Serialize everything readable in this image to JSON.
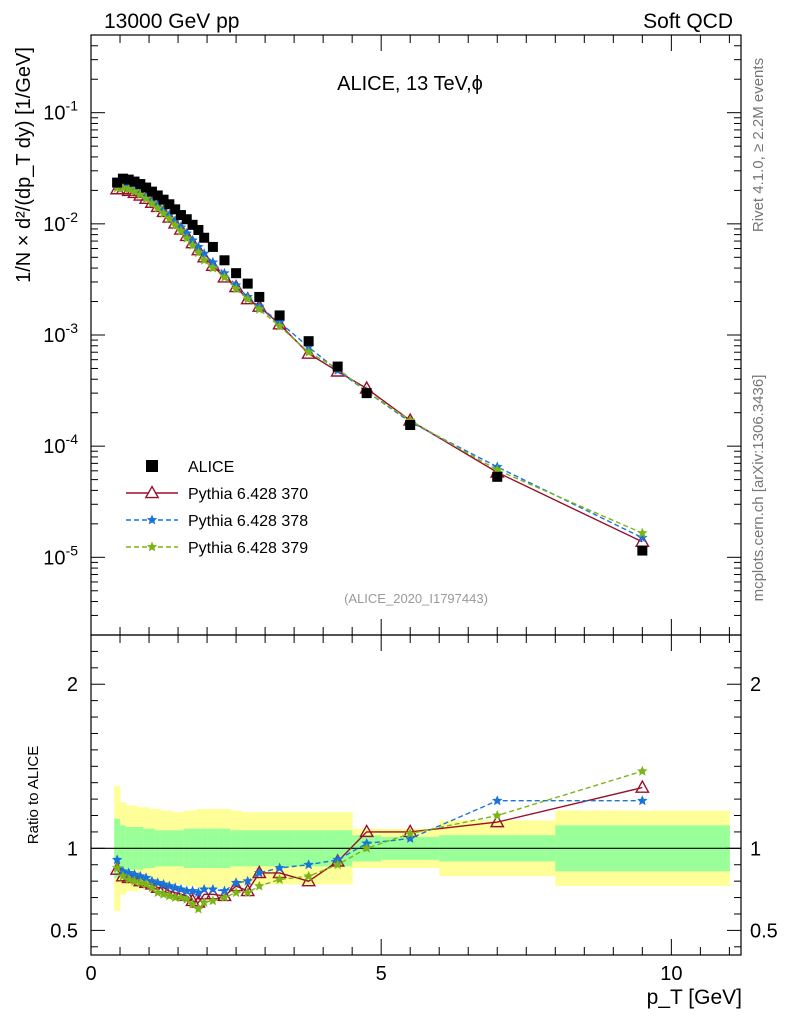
{
  "header": {
    "left": "13000 GeV pp",
    "right": "Soft QCD"
  },
  "side_labels": {
    "rivet": "Rivet 4.1.0, ≥ 2.2M events",
    "mcplots": "mcplots.cern.ch [arXiv:1306.3436]"
  },
  "chart_data": [
    {
      "panel": "main",
      "type": "scatter",
      "title": "ALICE, 13 TeV,ϕ",
      "analysis_id": "(ALICE_2020_I1797443)",
      "ylabel": "1/N × d²/(dp_T dy) [1/GeV]",
      "yscale": "log",
      "xlim": [
        0,
        11.2
      ],
      "ylim": [
        2e-06,
        0.5
      ],
      "x_ticks": [
        0,
        5,
        10
      ],
      "y_ticks": [
        1e-05,
        0.0001,
        0.001,
        0.01,
        0.1
      ],
      "y_tick_labels": [
        "10^-5",
        "10^-4",
        "10^-3",
        "10^-2",
        "10^-1"
      ],
      "x": [
        0.45,
        0.55,
        0.65,
        0.75,
        0.85,
        0.95,
        1.05,
        1.15,
        1.25,
        1.35,
        1.45,
        1.55,
        1.65,
        1.75,
        1.85,
        1.95,
        2.1,
        2.3,
        2.5,
        2.7,
        2.9,
        3.25,
        3.75,
        4.25,
        4.75,
        5.5,
        7.0,
        9.5
      ],
      "series": [
        {
          "name": "ALICE",
          "style": "data",
          "color": "#000000",
          "values": [
            0.0235,
            0.0255,
            0.025,
            0.024,
            0.0228,
            0.0212,
            0.0195,
            0.018,
            0.0165,
            0.015,
            0.0135,
            0.012,
            0.011,
            0.0098,
            0.0088,
            0.0075,
            0.0062,
            0.0047,
            0.0036,
            0.0029,
            0.0022,
            0.0015,
            0.00088,
            0.00052,
            0.0003,
            0.000155,
            5.3e-05,
            1.15e-05
          ]
        },
        {
          "name": "Pythia 6.428 370",
          "style": "triangle",
          "color": "#9a0f2b",
          "values": [
            0.0205,
            0.0205,
            0.0198,
            0.019,
            0.018,
            0.0168,
            0.0155,
            0.0142,
            0.0128,
            0.0114,
            0.0101,
            0.0089,
            0.0078,
            0.0067,
            0.0058,
            0.005,
            0.0042,
            0.0033,
            0.0027,
            0.0021,
            0.0018,
            0.00125,
            0.00068,
            0.00047,
            0.00033,
            0.00017,
            5.8e-05,
            1.38e-05
          ]
        },
        {
          "name": "Pythia 6.428 378",
          "style": "star-dashed",
          "color": "#1a73d9",
          "values": [
            0.022,
            0.0218,
            0.0212,
            0.0202,
            0.019,
            0.0176,
            0.0161,
            0.0147,
            0.0133,
            0.012,
            0.0106,
            0.0093,
            0.0082,
            0.0071,
            0.0062,
            0.0054,
            0.0045,
            0.0036,
            0.0028,
            0.0022,
            0.0018,
            0.0013,
            0.00078,
            0.00048,
            0.00031,
            0.000165,
            6.5e-05,
            1.5e-05
          ]
        },
        {
          "name": "Pythia 6.428 379",
          "style": "star-dashed",
          "color": "#7cb518",
          "values": [
            0.021,
            0.021,
            0.0205,
            0.0195,
            0.0183,
            0.0168,
            0.0153,
            0.0138,
            0.0124,
            0.0111,
            0.0097,
            0.0086,
            0.0074,
            0.0064,
            0.0055,
            0.0047,
            0.004,
            0.0033,
            0.0026,
            0.0021,
            0.0017,
            0.0012,
            0.0007,
            0.0005,
            0.00031,
            0.00017,
            6.1e-05,
            1.65e-05
          ]
        }
      ],
      "legend": {
        "position": "bottom-left",
        "entries": [
          "ALICE",
          "Pythia 6.428 370",
          "Pythia 6.428 378",
          "Pythia 6.428 379"
        ]
      }
    },
    {
      "panel": "ratio",
      "type": "line",
      "ylabel": "Ratio to ALICE",
      "xlabel": "p_T [GeV]",
      "xlim": [
        0,
        11.2
      ],
      "ylim": [
        0.35,
        2.3
      ],
      "x_ticks": [
        0,
        5,
        10
      ],
      "y_ticks": [
        0.5,
        1,
        2
      ],
      "reference": 1.0,
      "uncertainty_bands": {
        "x_edges": [
          0.4,
          0.5,
          0.6,
          0.7,
          0.8,
          0.9,
          1.0,
          1.1,
          1.2,
          1.3,
          1.4,
          1.5,
          1.6,
          1.7,
          1.8,
          1.9,
          2.0,
          2.2,
          2.4,
          2.6,
          2.8,
          3.0,
          3.5,
          4.0,
          4.5,
          5.0,
          6.0,
          8.0,
          11.0
        ],
        "stat_sys_inner": [
          0.18,
          0.14,
          0.13,
          0.13,
          0.13,
          0.12,
          0.12,
          0.11,
          0.11,
          0.11,
          0.11,
          0.11,
          0.12,
          0.12,
          0.12,
          0.12,
          0.12,
          0.12,
          0.11,
          0.11,
          0.11,
          0.11,
          0.11,
          0.11,
          0.08,
          0.07,
          0.08,
          0.14
        ],
        "total_outer": [
          0.38,
          0.28,
          0.26,
          0.26,
          0.25,
          0.25,
          0.24,
          0.24,
          0.23,
          0.23,
          0.22,
          0.22,
          0.23,
          0.23,
          0.24,
          0.24,
          0.24,
          0.24,
          0.23,
          0.22,
          0.22,
          0.22,
          0.22,
          0.22,
          0.12,
          0.12,
          0.17,
          0.23
        ],
        "colors": {
          "inner": "#99ff99",
          "outer": "#ffff99"
        }
      },
      "x": [
        0.45,
        0.55,
        0.65,
        0.75,
        0.85,
        0.95,
        1.05,
        1.15,
        1.25,
        1.35,
        1.45,
        1.55,
        1.65,
        1.75,
        1.85,
        1.95,
        2.1,
        2.3,
        2.5,
        2.7,
        2.9,
        3.25,
        3.75,
        4.25,
        4.75,
        5.5,
        7.0,
        9.5
      ],
      "series": [
        {
          "name": "Pythia 6.428 370",
          "style": "triangle",
          "color": "#9a0f2b",
          "values": [
            0.87,
            0.83,
            0.82,
            0.82,
            0.8,
            0.79,
            0.78,
            0.76,
            0.76,
            0.74,
            0.73,
            0.72,
            0.71,
            0.68,
            0.67,
            0.72,
            0.72,
            0.71,
            0.77,
            0.74,
            0.85,
            0.85,
            0.8,
            0.92,
            1.1,
            1.1,
            1.16,
            1.37
          ]
        },
        {
          "name": "Pythia 6.428 378",
          "style": "star-dashed",
          "color": "#1a73d9",
          "values": [
            0.93,
            0.86,
            0.85,
            0.84,
            0.83,
            0.82,
            0.8,
            0.79,
            0.78,
            0.77,
            0.76,
            0.75,
            0.74,
            0.74,
            0.73,
            0.75,
            0.75,
            0.74,
            0.79,
            0.8,
            0.85,
            0.88,
            0.9,
            0.93,
            1.03,
            1.06,
            1.29,
            1.29
          ]
        },
        {
          "name": "Pythia 6.428 379",
          "style": "star-dashed",
          "color": "#7cb518",
          "values": [
            0.88,
            0.83,
            0.81,
            0.8,
            0.79,
            0.78,
            0.76,
            0.73,
            0.72,
            0.71,
            0.7,
            0.7,
            0.69,
            0.66,
            0.63,
            0.67,
            0.68,
            0.7,
            0.73,
            0.73,
            0.77,
            0.81,
            0.83,
            0.9,
            1.0,
            1.09,
            1.2,
            1.47
          ]
        }
      ]
    }
  ]
}
